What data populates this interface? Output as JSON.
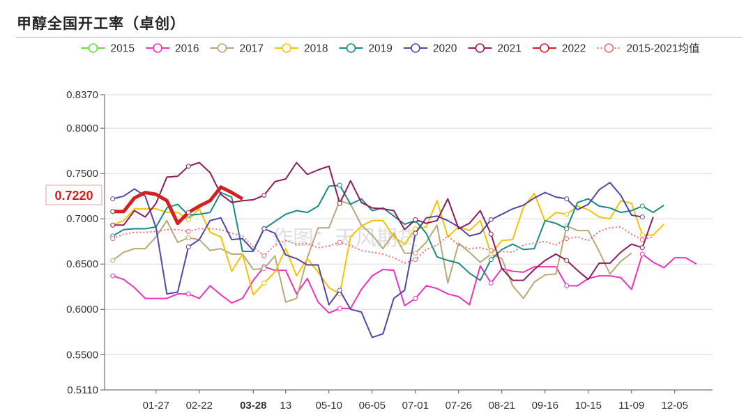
{
  "chart_data": {
    "type": "line",
    "title": "甲醇全国开工率（卓创）",
    "watermark": "作图：天风期货",
    "current_value_label": "0.7220",
    "highlight_tick": "03-28",
    "ylim": [
      0.511,
      0.837
    ],
    "y_ticks": [
      "0.8370",
      "0.8000",
      "0.7500",
      "0.7000",
      "0.6500",
      "0.6000",
      "0.5500",
      "0.5110"
    ],
    "y_tick_values": [
      0.837,
      0.8,
      0.75,
      0.7,
      0.65,
      0.6,
      0.55,
      0.511
    ],
    "x_ticks": [
      "01-27",
      "02-22",
      "03-28",
      "13",
      "05-10",
      "06-05",
      "07-01",
      "07-26",
      "08-21",
      "09-16",
      "10-15",
      "11-09",
      "12-05"
    ],
    "x_tick_weeks": [
      4,
      8,
      13,
      16,
      20,
      24,
      28,
      32,
      36,
      40,
      44,
      48,
      52
    ],
    "weeks": 56,
    "series": [
      {
        "name": "2015",
        "color": "#66dd44",
        "values": []
      },
      {
        "name": "2016",
        "color": "#ee33bb",
        "values": [
          0.637,
          0.633,
          0.624,
          0.612,
          0.612,
          0.612,
          0.617,
          0.617,
          0.612,
          0.626,
          0.616,
          0.607,
          0.612,
          0.632,
          0.647,
          0.643,
          0.643,
          0.617,
          0.634,
          0.608,
          0.596,
          0.601,
          0.601,
          0.622,
          0.637,
          0.644,
          0.643,
          0.604,
          0.612,
          0.626,
          0.623,
          0.617,
          0.614,
          0.605,
          0.648,
          0.629,
          0.645,
          0.642,
          0.641,
          0.647,
          0.647,
          0.647,
          0.626,
          0.626,
          0.634,
          0.637,
          0.637,
          0.635,
          0.622,
          0.661,
          0.652,
          0.646,
          0.657,
          0.657,
          0.65
        ]
      },
      {
        "name": "2017",
        "color": "#b8a878",
        "values": [
          0.654,
          0.663,
          0.667,
          0.667,
          0.68,
          0.698,
          0.674,
          0.679,
          0.677,
          0.665,
          0.667,
          0.661,
          0.661,
          0.644,
          0.645,
          0.659,
          0.608,
          0.612,
          0.657,
          0.69,
          0.69,
          0.72,
          0.716,
          0.693,
          0.682,
          0.667,
          0.684,
          0.662,
          0.662,
          0.674,
          0.693,
          0.629,
          0.673,
          0.663,
          0.652,
          0.661,
          0.656,
          0.626,
          0.612,
          0.63,
          0.638,
          0.639,
          0.692,
          0.687,
          0.687,
          0.664,
          0.639,
          0.653,
          0.662
        ]
      },
      {
        "name": "2018",
        "color": "#f5c400",
        "values": [
          0.693,
          0.698,
          0.711,
          0.711,
          0.711,
          0.707,
          0.707,
          0.699,
          0.711,
          0.685,
          0.68,
          0.642,
          0.661,
          0.616,
          0.629,
          0.641,
          0.667,
          0.637,
          0.656,
          0.641,
          0.624,
          0.617,
          0.68,
          0.692,
          0.698,
          0.698,
          0.68,
          0.672,
          0.689,
          0.691,
          0.72,
          0.68,
          0.691,
          0.687,
          0.698,
          0.661,
          0.676,
          0.677,
          0.713,
          0.728,
          0.697,
          0.707,
          0.705,
          0.714,
          0.71,
          0.702,
          0.7,
          0.72,
          0.717,
          0.682,
          0.682,
          0.694
        ]
      },
      {
        "name": "2019",
        "color": "#1a8888",
        "values": [
          0.681,
          0.688,
          0.689,
          0.689,
          0.691,
          0.712,
          0.716,
          0.704,
          0.705,
          0.707,
          0.729,
          0.724,
          0.664,
          0.664,
          0.689,
          0.697,
          0.705,
          0.709,
          0.707,
          0.714,
          0.736,
          0.737,
          0.716,
          0.722,
          0.709,
          0.712,
          0.703,
          0.694,
          0.698,
          0.684,
          0.658,
          0.654,
          0.651,
          0.64,
          0.632,
          0.655,
          0.666,
          0.672,
          0.666,
          0.667,
          0.698,
          0.695,
          0.689,
          0.718,
          0.722,
          0.714,
          0.712,
          0.707,
          0.709,
          0.714,
          0.707,
          0.715
        ]
      },
      {
        "name": "2020",
        "color": "#5544aa",
        "values": [
          0.722,
          0.725,
          0.733,
          0.725,
          0.69,
          0.617,
          0.619,
          0.669,
          0.677,
          0.698,
          0.701,
          0.677,
          0.678,
          0.665,
          0.689,
          0.684,
          0.66,
          0.656,
          0.649,
          0.649,
          0.605,
          0.621,
          0.6,
          0.597,
          0.569,
          0.573,
          0.612,
          0.621,
          0.684,
          0.701,
          0.703,
          0.698,
          0.691,
          0.681,
          0.684,
          0.699,
          0.705,
          0.711,
          0.715,
          0.723,
          0.729,
          0.724,
          0.722,
          0.71,
          0.716,
          0.732,
          0.74,
          0.726,
          0.704,
          0.702
        ]
      },
      {
        "name": "2021",
        "color": "#8b1e5a",
        "values": [
          0.693,
          0.693,
          0.709,
          0.702,
          0.717,
          0.746,
          0.747,
          0.758,
          0.762,
          0.751,
          0.727,
          0.718,
          0.72,
          0.721,
          0.726,
          0.741,
          0.744,
          0.762,
          0.749,
          0.754,
          0.758,
          0.717,
          0.742,
          0.718,
          0.712,
          0.711,
          0.709,
          0.688,
          0.699,
          0.695,
          0.698,
          0.722,
          0.689,
          0.695,
          0.709,
          0.683,
          0.645,
          0.632,
          0.632,
          0.644,
          0.654,
          0.661,
          0.654,
          0.643,
          0.633,
          0.651,
          0.651,
          0.663,
          0.672,
          0.668,
          0.702
        ]
      },
      {
        "name": "2022",
        "color": "#d42020",
        "values": [
          0.708,
          0.708,
          0.723,
          0.729,
          0.727,
          0.72,
          0.695,
          0.707,
          0.714,
          0.72,
          0.735,
          0.729,
          0.722
        ]
      },
      {
        "name": "2015-2021均值",
        "color": "#f07070",
        "dashed": true,
        "values": [
          0.678,
          0.683,
          0.685,
          0.685,
          0.686,
          0.688,
          0.688,
          0.686,
          0.689,
          0.689,
          0.688,
          0.684,
          0.681,
          0.669,
          0.659,
          0.671,
          0.676,
          0.672,
          0.673,
          0.668,
          0.67,
          0.674,
          0.67,
          0.665,
          0.663,
          0.661,
          0.657,
          0.651,
          0.655,
          0.666,
          0.671,
          0.681,
          0.671,
          0.667,
          0.668,
          0.665,
          0.664,
          0.663,
          0.671,
          0.673,
          0.675,
          0.671,
          0.678,
          0.68,
          0.676,
          0.686,
          0.69,
          0.691,
          0.683,
          0.677,
          0.68
        ]
      }
    ]
  }
}
